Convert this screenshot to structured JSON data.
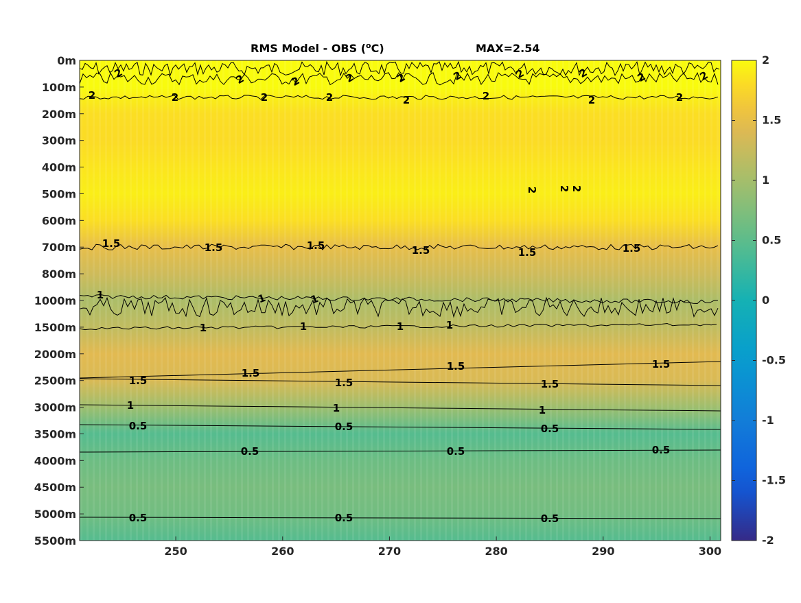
{
  "chart_data": {
    "type": "heatmap",
    "title": "RMS Model - OBS (",
    "title_super": "o",
    "title_unit": "C)",
    "annotation": "MAX=2.54",
    "x_ticks": [
      250,
      260,
      270,
      280,
      290,
      300
    ],
    "xlim": [
      241,
      301
    ],
    "y_tick_labels": [
      "0m",
      "100m",
      "200m",
      "300m",
      "400m",
      "500m",
      "600m",
      "700m",
      "800m",
      "1000m",
      "1500m",
      "2000m",
      "2500m",
      "3000m",
      "3500m",
      "4000m",
      "4500m",
      "5000m",
      "5500m"
    ],
    "y_scale": "stretched depth (each labeled level equally spaced)",
    "colorbar": {
      "ticks": [
        "2",
        "1.5",
        "1",
        "0.5",
        "0",
        "-0.5",
        "-1",
        "-1.5",
        "-2"
      ],
      "range": [
        -2,
        2
      ],
      "colormap": "parula"
    },
    "rows": [
      {
        "depth": "0m",
        "value": 2.0
      },
      {
        "depth": "100m",
        "value": 2.0
      },
      {
        "depth": "150m",
        "value": 1.9
      },
      {
        "depth": "200m",
        "value": 1.82
      },
      {
        "depth": "300m",
        "value": 1.8
      },
      {
        "depth": "400m",
        "value": 1.86
      },
      {
        "depth": "500m",
        "value": 1.92
      },
      {
        "depth": "600m",
        "value": 1.82
      },
      {
        "depth": "700m",
        "value": 1.5
      },
      {
        "depth": "800m",
        "value": 1.3
      },
      {
        "depth": "1000m",
        "value": 1.05
      },
      {
        "depth": "1500m",
        "value": 1.2
      },
      {
        "depth": "2000m",
        "value": 1.45
      },
      {
        "depth": "2500m",
        "value": 1.38
      },
      {
        "depth": "3000m",
        "value": 0.95
      },
      {
        "depth": "3500m",
        "value": 0.45
      },
      {
        "depth": "4000m",
        "value": 0.62
      },
      {
        "depth": "4500m",
        "value": 0.7
      },
      {
        "depth": "5000m",
        "value": 0.65
      },
      {
        "depth": "5500m",
        "value": 0.45
      }
    ],
    "contour_labels": [
      "2",
      "1.5",
      "1",
      "0.5"
    ]
  }
}
